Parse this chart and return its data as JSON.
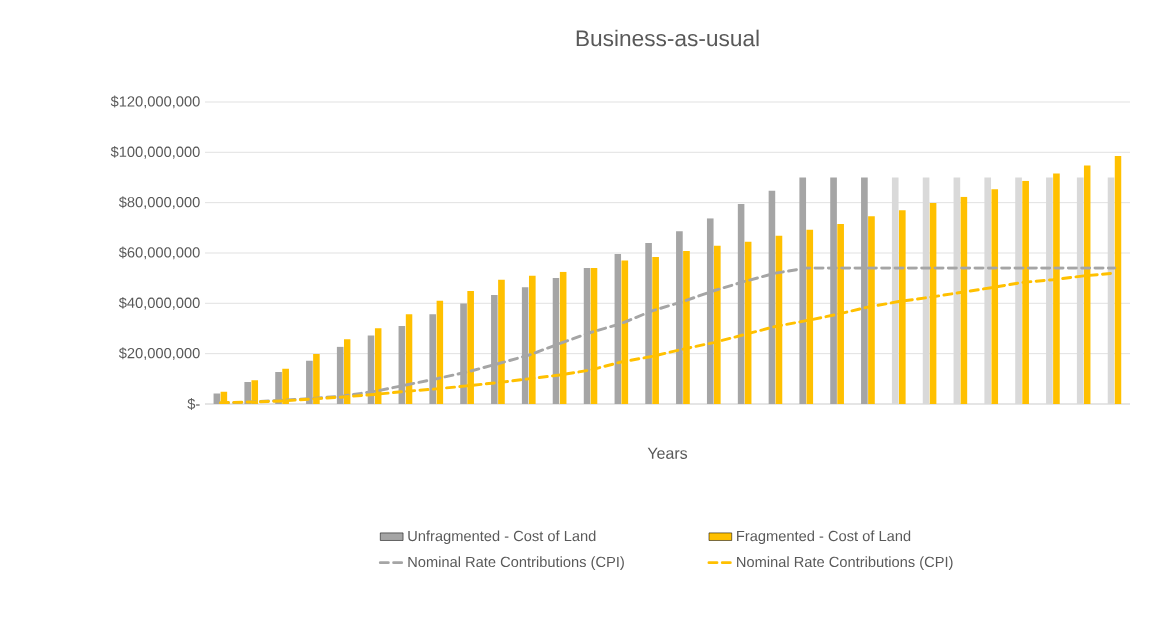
{
  "chart_data": {
    "type": "bar",
    "title": "Business-as-usual",
    "xlabel": "Years",
    "categories": [
      null,
      null,
      null,
      null,
      null,
      null,
      null,
      null,
      null,
      null,
      null,
      null,
      null,
      null,
      null,
      null,
      null,
      null,
      null,
      null,
      null,
      null,
      null,
      null,
      null,
      null,
      null,
      null,
      null,
      null
    ],
    "series": [
      {
        "name": "Unfragmented - Cost of Land",
        "color": "#a5a5a5",
        "colors": [
          "#a5a5a5",
          "#a5a5a5",
          "#a5a5a5",
          "#a5a5a5",
          "#a5a5a5",
          "#a5a5a5",
          "#a5a5a5",
          "#a5a5a5",
          "#a5a5a5",
          "#a5a5a5",
          "#a5a5a5",
          "#a5a5a5",
          "#a5a5a5",
          "#a5a5a5",
          "#a5a5a5",
          "#a5a5a5",
          "#a5a5a5",
          "#a5a5a5",
          "#a5a5a5",
          "#a5a5a5",
          "#a5a5a5",
          "#a5a5a5",
          "#d9d9d9",
          "#d9d9d9",
          "#d9d9d9",
          "#d9d9d9",
          "#d9d9d9",
          "#d9d9d9",
          "#d9d9d9",
          "#d9d9d9"
        ],
        "values": [
          4200000,
          8700000,
          12700000,
          17200000,
          22700000,
          27200000,
          31000000,
          35700000,
          39900000,
          43300000,
          46400000,
          50100000,
          54000000,
          59600000,
          64000000,
          68600000,
          73800000,
          79500000,
          84700000,
          90000000,
          90000000,
          90000000,
          90000000,
          90000000,
          90000000,
          90000000,
          90000000,
          90000000,
          90000000,
          90000000
        ]
      },
      {
        "name": "Fragmented - Cost of Land",
        "color": "#ffc000",
        "values": [
          4900000,
          9400000,
          14000000,
          19900000,
          25700000,
          30100000,
          35700000,
          41000000,
          44900000,
          49400000,
          51000000,
          52500000,
          54000000,
          57000000,
          58400000,
          60800000,
          62900000,
          64500000,
          66900000,
          69200000,
          71500000,
          74600000,
          77000000,
          79900000,
          82300000,
          85300000,
          88700000,
          91600000,
          94800000,
          98500000
        ]
      },
      {
        "name": "Nominal Rate Contributions (CPI)",
        "type": "line",
        "color": "#a5a5a5",
        "line_style": "dashed",
        "values": [
          300000,
          800000,
          1500000,
          2200000,
          3200000,
          5000000,
          7500000,
          10000000,
          12700000,
          16000000,
          19400000,
          24000000,
          28400000,
          32000000,
          37000000,
          40700000,
          45000000,
          48700000,
          52000000,
          54000000,
          54000000,
          54000000,
          54000000,
          54000000,
          54000000,
          54000000,
          54000000,
          54000000,
          54000000,
          54000000
        ]
      },
      {
        "name": "Nominal Rate Contributions (CPI)",
        "type": "line",
        "color": "#ffc000",
        "line_style": "dashed",
        "values": [
          500000,
          800000,
          1200000,
          2000000,
          2800000,
          3800000,
          5000000,
          6000000,
          7200000,
          8500000,
          10000000,
          11500000,
          13500000,
          16700000,
          18900000,
          21800000,
          24400000,
          27600000,
          30800000,
          33100000,
          35600000,
          38500000,
          40700000,
          42400000,
          44300000,
          46200000,
          48300000,
          49400000,
          50900000,
          52000000
        ]
      }
    ],
    "ylim": [
      0,
      120000000
    ],
    "yticks": [
      {
        "value": 0,
        "label": "$-"
      },
      {
        "value": 20000000,
        "label": "$20,000,000"
      },
      {
        "value": 40000000,
        "label": "$40,000,000"
      },
      {
        "value": 60000000,
        "label": "$60,000,000"
      },
      {
        "value": 80000000,
        "label": "$80,000,000"
      },
      {
        "value": 100000000,
        "label": "$100,000,000"
      },
      {
        "value": 120000000,
        "label": "$120,000,000"
      }
    ],
    "grid": "y",
    "legend": "bottom"
  }
}
